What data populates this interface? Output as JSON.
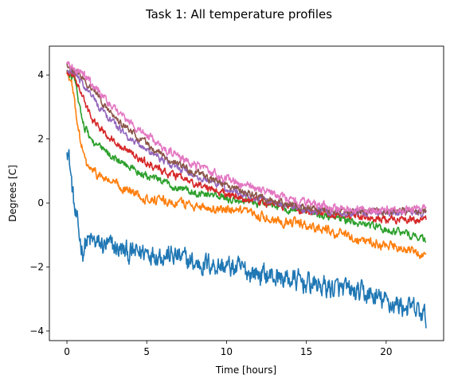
{
  "chart_data": {
    "type": "line",
    "title": "Task 1: All temperature profiles",
    "xlabel": "Time [hours]",
    "ylabel": "Degrees [C]",
    "xlim": [
      -1.1,
      23.6
    ],
    "ylim": [
      -4.3,
      4.9
    ],
    "xticks": [
      0,
      5,
      10,
      15,
      20
    ],
    "yticks": [
      -4,
      -2,
      0,
      2,
      4
    ],
    "ytick_labels": [
      "−4",
      "−2",
      "0",
      "2",
      "4"
    ],
    "grid": false,
    "legend": "none",
    "series": [
      {
        "color": "#1f77b4",
        "noise": 0.28,
        "x": [
          0,
          0.1,
          0.3,
          0.5,
          0.8,
          1,
          1.2,
          1.5,
          2,
          3,
          4,
          5,
          6,
          7,
          8,
          9,
          10,
          11,
          12,
          13,
          14,
          15,
          16,
          17,
          18,
          19,
          20,
          21,
          22,
          22.5
        ],
        "y": [
          1.85,
          1.6,
          0.6,
          -0.3,
          -1.1,
          -1.5,
          -1.2,
          -1.2,
          -1.3,
          -1.4,
          -1.6,
          -1.5,
          -1.6,
          -1.7,
          -1.9,
          -1.9,
          -2.0,
          -2.1,
          -2.2,
          -2.3,
          -2.4,
          -2.5,
          -2.6,
          -2.7,
          -2.8,
          -2.9,
          -3.1,
          -3.2,
          -3.4,
          -3.6
        ]
      },
      {
        "color": "#ff7f0e",
        "noise": 0.12,
        "x": [
          0,
          0.3,
          0.6,
          0.9,
          1.2,
          1.6,
          2,
          3,
          4,
          5,
          6,
          7,
          8,
          9,
          10,
          11,
          12,
          13,
          14,
          15,
          16,
          17,
          18,
          19,
          20,
          21,
          22,
          22.5
        ],
        "y": [
          4.05,
          3.7,
          2.7,
          1.8,
          1.2,
          1.0,
          0.85,
          0.6,
          0.35,
          0.15,
          0.05,
          0.0,
          -0.05,
          -0.15,
          -0.25,
          -0.3,
          -0.4,
          -0.5,
          -0.6,
          -0.7,
          -0.8,
          -0.95,
          -1.1,
          -1.2,
          -1.35,
          -1.45,
          -1.55,
          -1.75
        ]
      },
      {
        "color": "#2ca02c",
        "noise": 0.1,
        "x": [
          0,
          0.5,
          0.8,
          1.1,
          1.5,
          2,
          3,
          4,
          5,
          6,
          7,
          8,
          9,
          10,
          11,
          12,
          13,
          14,
          15,
          16,
          17,
          18,
          19,
          20,
          21,
          22,
          22.5
        ],
        "y": [
          4.1,
          3.8,
          3.0,
          2.4,
          2.0,
          1.75,
          1.4,
          1.1,
          0.85,
          0.65,
          0.5,
          0.35,
          0.25,
          0.15,
          0.05,
          0.0,
          -0.1,
          -0.2,
          -0.25,
          -0.35,
          -0.45,
          -0.6,
          -0.7,
          -0.85,
          -0.95,
          -1.05,
          -1.2
        ]
      },
      {
        "color": "#d62728",
        "noise": 0.1,
        "x": [
          0,
          0.5,
          1,
          1.5,
          2,
          3,
          4,
          5,
          6,
          7,
          8,
          9,
          10,
          11,
          12,
          13,
          14,
          15,
          16,
          17,
          18,
          19,
          20,
          21,
          22,
          22.5
        ],
        "y": [
          4.1,
          3.9,
          3.3,
          2.65,
          2.35,
          1.95,
          1.55,
          1.25,
          1.0,
          0.8,
          0.6,
          0.45,
          0.3,
          0.15,
          0.05,
          -0.05,
          -0.15,
          -0.25,
          -0.3,
          -0.35,
          -0.4,
          -0.45,
          -0.5,
          -0.5,
          -0.55,
          -0.55
        ]
      },
      {
        "color": "#9467bd",
        "noise": 0.09,
        "x": [
          0,
          0.5,
          1,
          2,
          3,
          4,
          5,
          6,
          7,
          8,
          9,
          10,
          11,
          12,
          13,
          14,
          15,
          16,
          17,
          18,
          19,
          20,
          21,
          22,
          22.5
        ],
        "y": [
          4.15,
          4.05,
          3.75,
          3.0,
          2.45,
          2.0,
          1.65,
          1.35,
          1.1,
          0.85,
          0.65,
          0.45,
          0.3,
          0.15,
          0.0,
          -0.1,
          -0.2,
          -0.25,
          -0.3,
          -0.3,
          -0.3,
          -0.3,
          -0.3,
          -0.3,
          -0.3
        ]
      },
      {
        "color": "#8c564b",
        "noise": 0.09,
        "x": [
          0,
          0.5,
          1,
          2,
          3,
          4,
          5,
          6,
          7,
          8,
          9,
          10,
          11,
          12,
          13,
          14,
          15,
          16,
          17,
          18,
          19,
          20,
          21,
          22,
          22.5
        ],
        "y": [
          4.3,
          4.1,
          3.9,
          3.3,
          2.7,
          2.25,
          1.85,
          1.5,
          1.2,
          0.95,
          0.75,
          0.55,
          0.35,
          0.2,
          0.05,
          -0.05,
          -0.15,
          -0.2,
          -0.25,
          -0.25,
          -0.25,
          -0.25,
          -0.25,
          -0.25,
          -0.25
        ]
      },
      {
        "color": "#e377c2",
        "noise": 0.11,
        "x": [
          0,
          0.5,
          1,
          2,
          3,
          4,
          5,
          6,
          7,
          8,
          9,
          10,
          11,
          12,
          13,
          14,
          15,
          16,
          17,
          18,
          19,
          20,
          21,
          22,
          22.5
        ],
        "y": [
          4.4,
          4.2,
          4.0,
          3.5,
          2.95,
          2.5,
          2.1,
          1.75,
          1.45,
          1.2,
          0.95,
          0.75,
          0.55,
          0.4,
          0.25,
          0.1,
          0.0,
          -0.1,
          -0.15,
          -0.2,
          -0.2,
          -0.2,
          -0.2,
          -0.2,
          -0.15
        ]
      }
    ]
  }
}
